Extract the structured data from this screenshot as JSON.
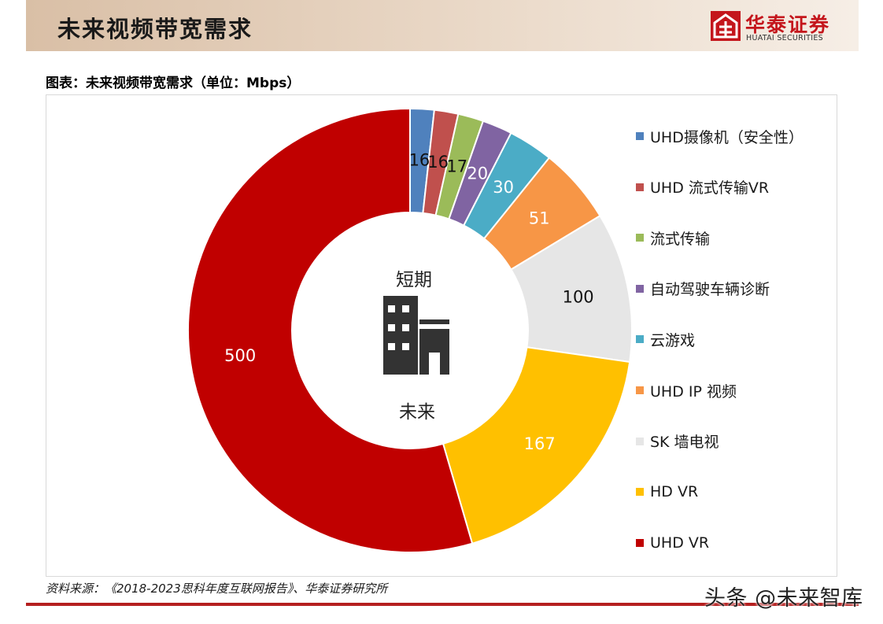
{
  "header": {
    "title": "未来视频带宽需求"
  },
  "logo": {
    "name_cn": "华泰证券",
    "name_en": "HUATAI SECURITIES"
  },
  "figure": {
    "title": "图表：未来视频带宽需求（单位：Mbps）"
  },
  "source": {
    "text": "资料来源：《2018-2023思科年度互联网报告》、华泰证券研究所"
  },
  "watermark": {
    "text": "头条 @未来智库"
  },
  "center": {
    "top_label": "短期",
    "bottom_label": "未来"
  },
  "chart_data": {
    "type": "pie",
    "categories": [
      "UHD摄像机（安全性）",
      "UHD 流式传输VR",
      "流式传输",
      "自动驾驶车辆诊断",
      "云游戏",
      "UHD IP 视频",
      "SK 墙电视",
      "HD VR",
      "UHD VR"
    ],
    "values": [
      16,
      16,
      17,
      20,
      30,
      51,
      100,
      167,
      500
    ],
    "labels": [
      "16",
      "16",
      "17",
      "20",
      "30",
      "51",
      "100",
      "167",
      "500"
    ],
    "colors": [
      "#4f81bd",
      "#c0504d",
      "#9bbb59",
      "#8064a2",
      "#4bacc6",
      "#f79646",
      "#e6e6e6",
      "#ffc000",
      "#c00000"
    ],
    "label_colors": [
      "#111111",
      "#111111",
      "#111111",
      "#ffffff",
      "#ffffff",
      "#ffffff",
      "#111111",
      "#ffffff",
      "#ffffff"
    ],
    "legend_position": "right",
    "hole": "donut"
  }
}
